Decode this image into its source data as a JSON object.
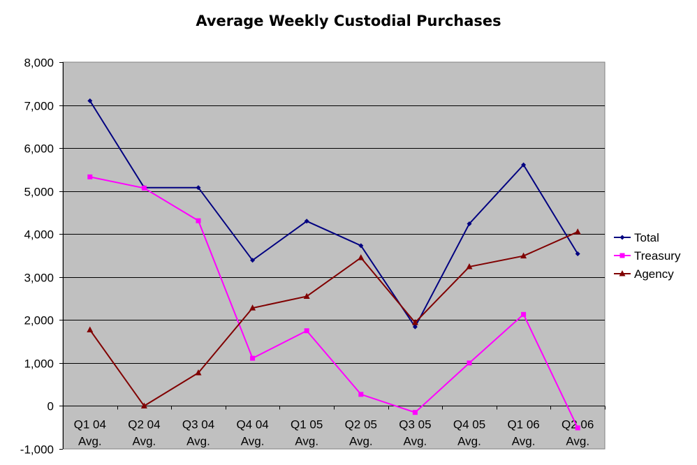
{
  "chart_data": {
    "type": "line",
    "title": "Average Weekly Custodial Purchases",
    "xlabel": "",
    "ylabel": "",
    "categories": [
      [
        "Q1 04",
        "Avg."
      ],
      [
        "Q2 04",
        "Avg."
      ],
      [
        "Q3 04",
        "Avg."
      ],
      [
        "Q4 04",
        "Avg."
      ],
      [
        "Q1 05",
        "Avg."
      ],
      [
        "Q2 05",
        "Avg."
      ],
      [
        "Q3 05",
        "Avg."
      ],
      [
        "Q4 05",
        "Avg."
      ],
      [
        "Q1 06",
        "Avg."
      ],
      [
        "Q2 06",
        "Avg."
      ]
    ],
    "ylim": [
      -1000,
      8000
    ],
    "yticks": [
      8000,
      7000,
      6000,
      5000,
      4000,
      3000,
      2000,
      1000,
      0,
      -1000
    ],
    "ytick_labels": [
      "8,000",
      "7,000",
      "6,000",
      "5,000",
      "4,000",
      "3,000",
      "2,000",
      "1,000",
      "0",
      "-1,000"
    ],
    "grid": true,
    "plot_background": "#c0c0c0",
    "legend_position": "right",
    "series": [
      {
        "name": "Total",
        "color": "#000080",
        "marker": "diamond",
        "values": [
          7100,
          5080,
          5080,
          3390,
          4300,
          3730,
          1840,
          4240,
          5610,
          3540
        ]
      },
      {
        "name": "Treasury",
        "color": "#ff00ff",
        "marker": "square",
        "values": [
          5330,
          5070,
          4310,
          1110,
          1750,
          270,
          -150,
          1000,
          2130,
          -510
        ]
      },
      {
        "name": "Agency",
        "color": "#800000",
        "marker": "triangle",
        "values": [
          1770,
          0,
          770,
          2280,
          2550,
          3450,
          1940,
          3240,
          3490,
          4050
        ]
      }
    ]
  }
}
